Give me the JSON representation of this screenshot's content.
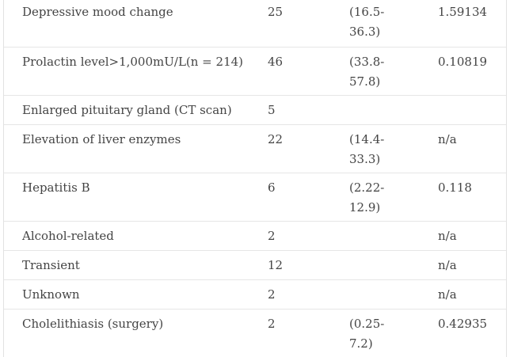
{
  "table": {
    "rows": [
      {
        "label": "Depressive mood change",
        "value": "25",
        "ci_line1": "(16.5-",
        "ci_line2": "36.3)",
        "p": "1.59134"
      },
      {
        "label": "Prolactin level>1,000mU/L(n = 214)",
        "value": "46",
        "ci_line1": "(33.8-",
        "ci_line2": "57.8)",
        "p": "0.10819"
      },
      {
        "label": "Enlarged pituitary gland (CT scan)",
        "value": "5",
        "ci_line1": "",
        "ci_line2": "",
        "p": ""
      },
      {
        "label": "Elevation of liver enzymes",
        "value": "22",
        "ci_line1": "(14.4-",
        "ci_line2": "33.3)",
        "p": "n/a"
      },
      {
        "label": "Hepatitis B",
        "value": "6",
        "ci_line1": "(2.22-",
        "ci_line2": "12.9)",
        "p": "0.118"
      },
      {
        "label": "Alcohol-related",
        "value": "2",
        "ci_line1": "",
        "ci_line2": "",
        "p": "n/a"
      },
      {
        "label": "Transient",
        "value": "12",
        "ci_line1": "",
        "ci_line2": "",
        "p": "n/a"
      },
      {
        "label": "Unknown",
        "value": "2",
        "ci_line1": "",
        "ci_line2": "",
        "p": "n/a"
      },
      {
        "label": "Cholelithiasis (surgery)",
        "value": "2",
        "ci_line1": "(0.25-",
        "ci_line2": "7.2)",
        "p": "0.42935"
      }
    ]
  }
}
